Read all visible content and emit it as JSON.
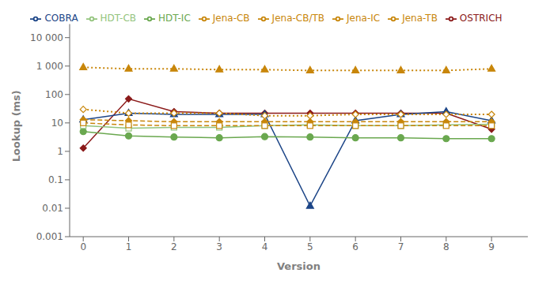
{
  "chart_data": {
    "type": "line",
    "x": [
      0,
      1,
      2,
      3,
      4,
      5,
      6,
      7,
      8,
      9
    ],
    "series": [
      {
        "name": "OSTRICH",
        "color": "#8B1A1A",
        "marker": "diamond",
        "line_style": "solid",
        "values": [
          1.3,
          70,
          25,
          22,
          22,
          22,
          22,
          22,
          22,
          6
        ]
      },
      {
        "name": "COBRA",
        "color": "#1C4587",
        "marker": "triangle",
        "line_style": "solid",
        "values": [
          13,
          22,
          20,
          20,
          20,
          0.012,
          12,
          20,
          25,
          12
        ]
      },
      {
        "name": "HDT-IC",
        "color": "#6AA84F",
        "marker": "circle",
        "line_style": "solid",
        "values": [
          5,
          3.5,
          3.2,
          3.0,
          3.3,
          3.2,
          3.0,
          3.0,
          2.8,
          2.8
        ]
      },
      {
        "name": "HDT-CB",
        "color": "#93C47D",
        "marker": "square-open",
        "line_style": "solid",
        "values": [
          8,
          6.5,
          7,
          7,
          8,
          8.5,
          8,
          8,
          8.5,
          9
        ]
      },
      {
        "name": "Jena-IC",
        "color": "#C8860A",
        "marker": "diamond",
        "line_style": "dashed",
        "values": [
          13,
          12,
          11,
          11,
          11,
          11,
          11,
          11,
          11,
          11
        ]
      },
      {
        "name": "Jena-CB",
        "color": "#C8860A",
        "marker": "square-open",
        "line_style": "dashed",
        "values": [
          10,
          8.5,
          8,
          8,
          8,
          8,
          8,
          8,
          8,
          8
        ]
      },
      {
        "name": "Jena-TB",
        "color": "#C8860A",
        "marker": "triangle",
        "line_style": "dotted",
        "values": [
          900,
          800,
          800,
          750,
          750,
          700,
          700,
          700,
          700,
          800
        ]
      },
      {
        "name": "Jena-CB/TB",
        "color": "#C8860A",
        "marker": "diamond-open",
        "line_style": "dotted",
        "values": [
          30,
          22,
          22,
          22,
          18,
          18,
          20,
          20,
          20,
          20
        ]
      }
    ],
    "xlabel": "Version",
    "ylabel": "Lookup (ms)",
    "xlim": [
      -0.3,
      9.8
    ],
    "xticks": [
      0,
      1,
      2,
      3,
      4,
      5,
      6,
      7,
      8,
      9
    ],
    "ylim": [
      0.001,
      30000
    ],
    "yticks": [
      0.001,
      0.01,
      0.1,
      1,
      10,
      100,
      {
        "value": 1000,
        "label": "1 000"
      },
      {
        "value": 10000,
        "label": "10 000"
      }
    ],
    "log": "y",
    "grid": false,
    "legend": "top"
  }
}
